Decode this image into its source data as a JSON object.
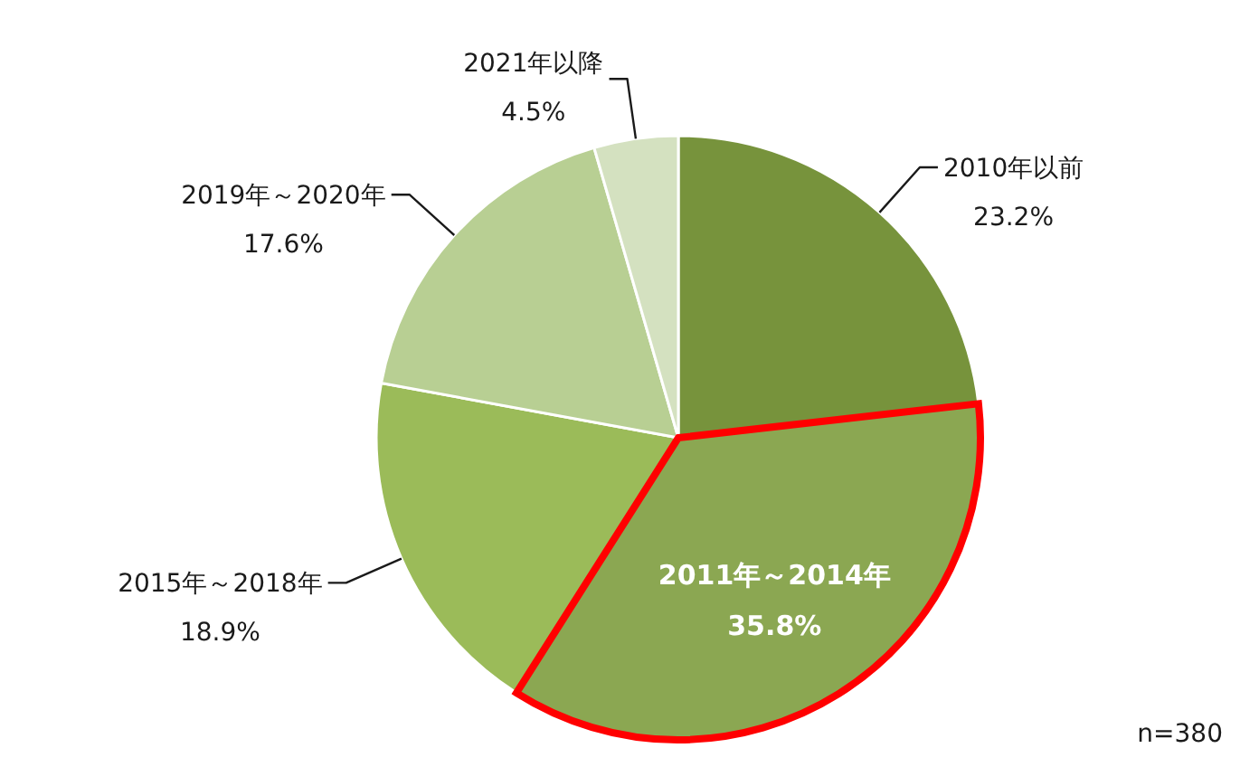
{
  "chart_data": {
    "type": "pie",
    "categories": [
      "2010年以前",
      "2011年～2014年",
      "2015年～2018年",
      "2019年～2020年",
      "2021年以降"
    ],
    "values": [
      23.2,
      35.8,
      18.9,
      17.6,
      4.5
    ],
    "colors": [
      "#77933c",
      "#8ba752",
      "#9bbb59",
      "#b8cf93",
      "#d4e1c0"
    ],
    "value_labels": [
      "23.2%",
      "35.8%",
      "18.9%",
      "17.6%",
      "4.5%"
    ],
    "annotations": [
      "n=380"
    ]
  }
}
